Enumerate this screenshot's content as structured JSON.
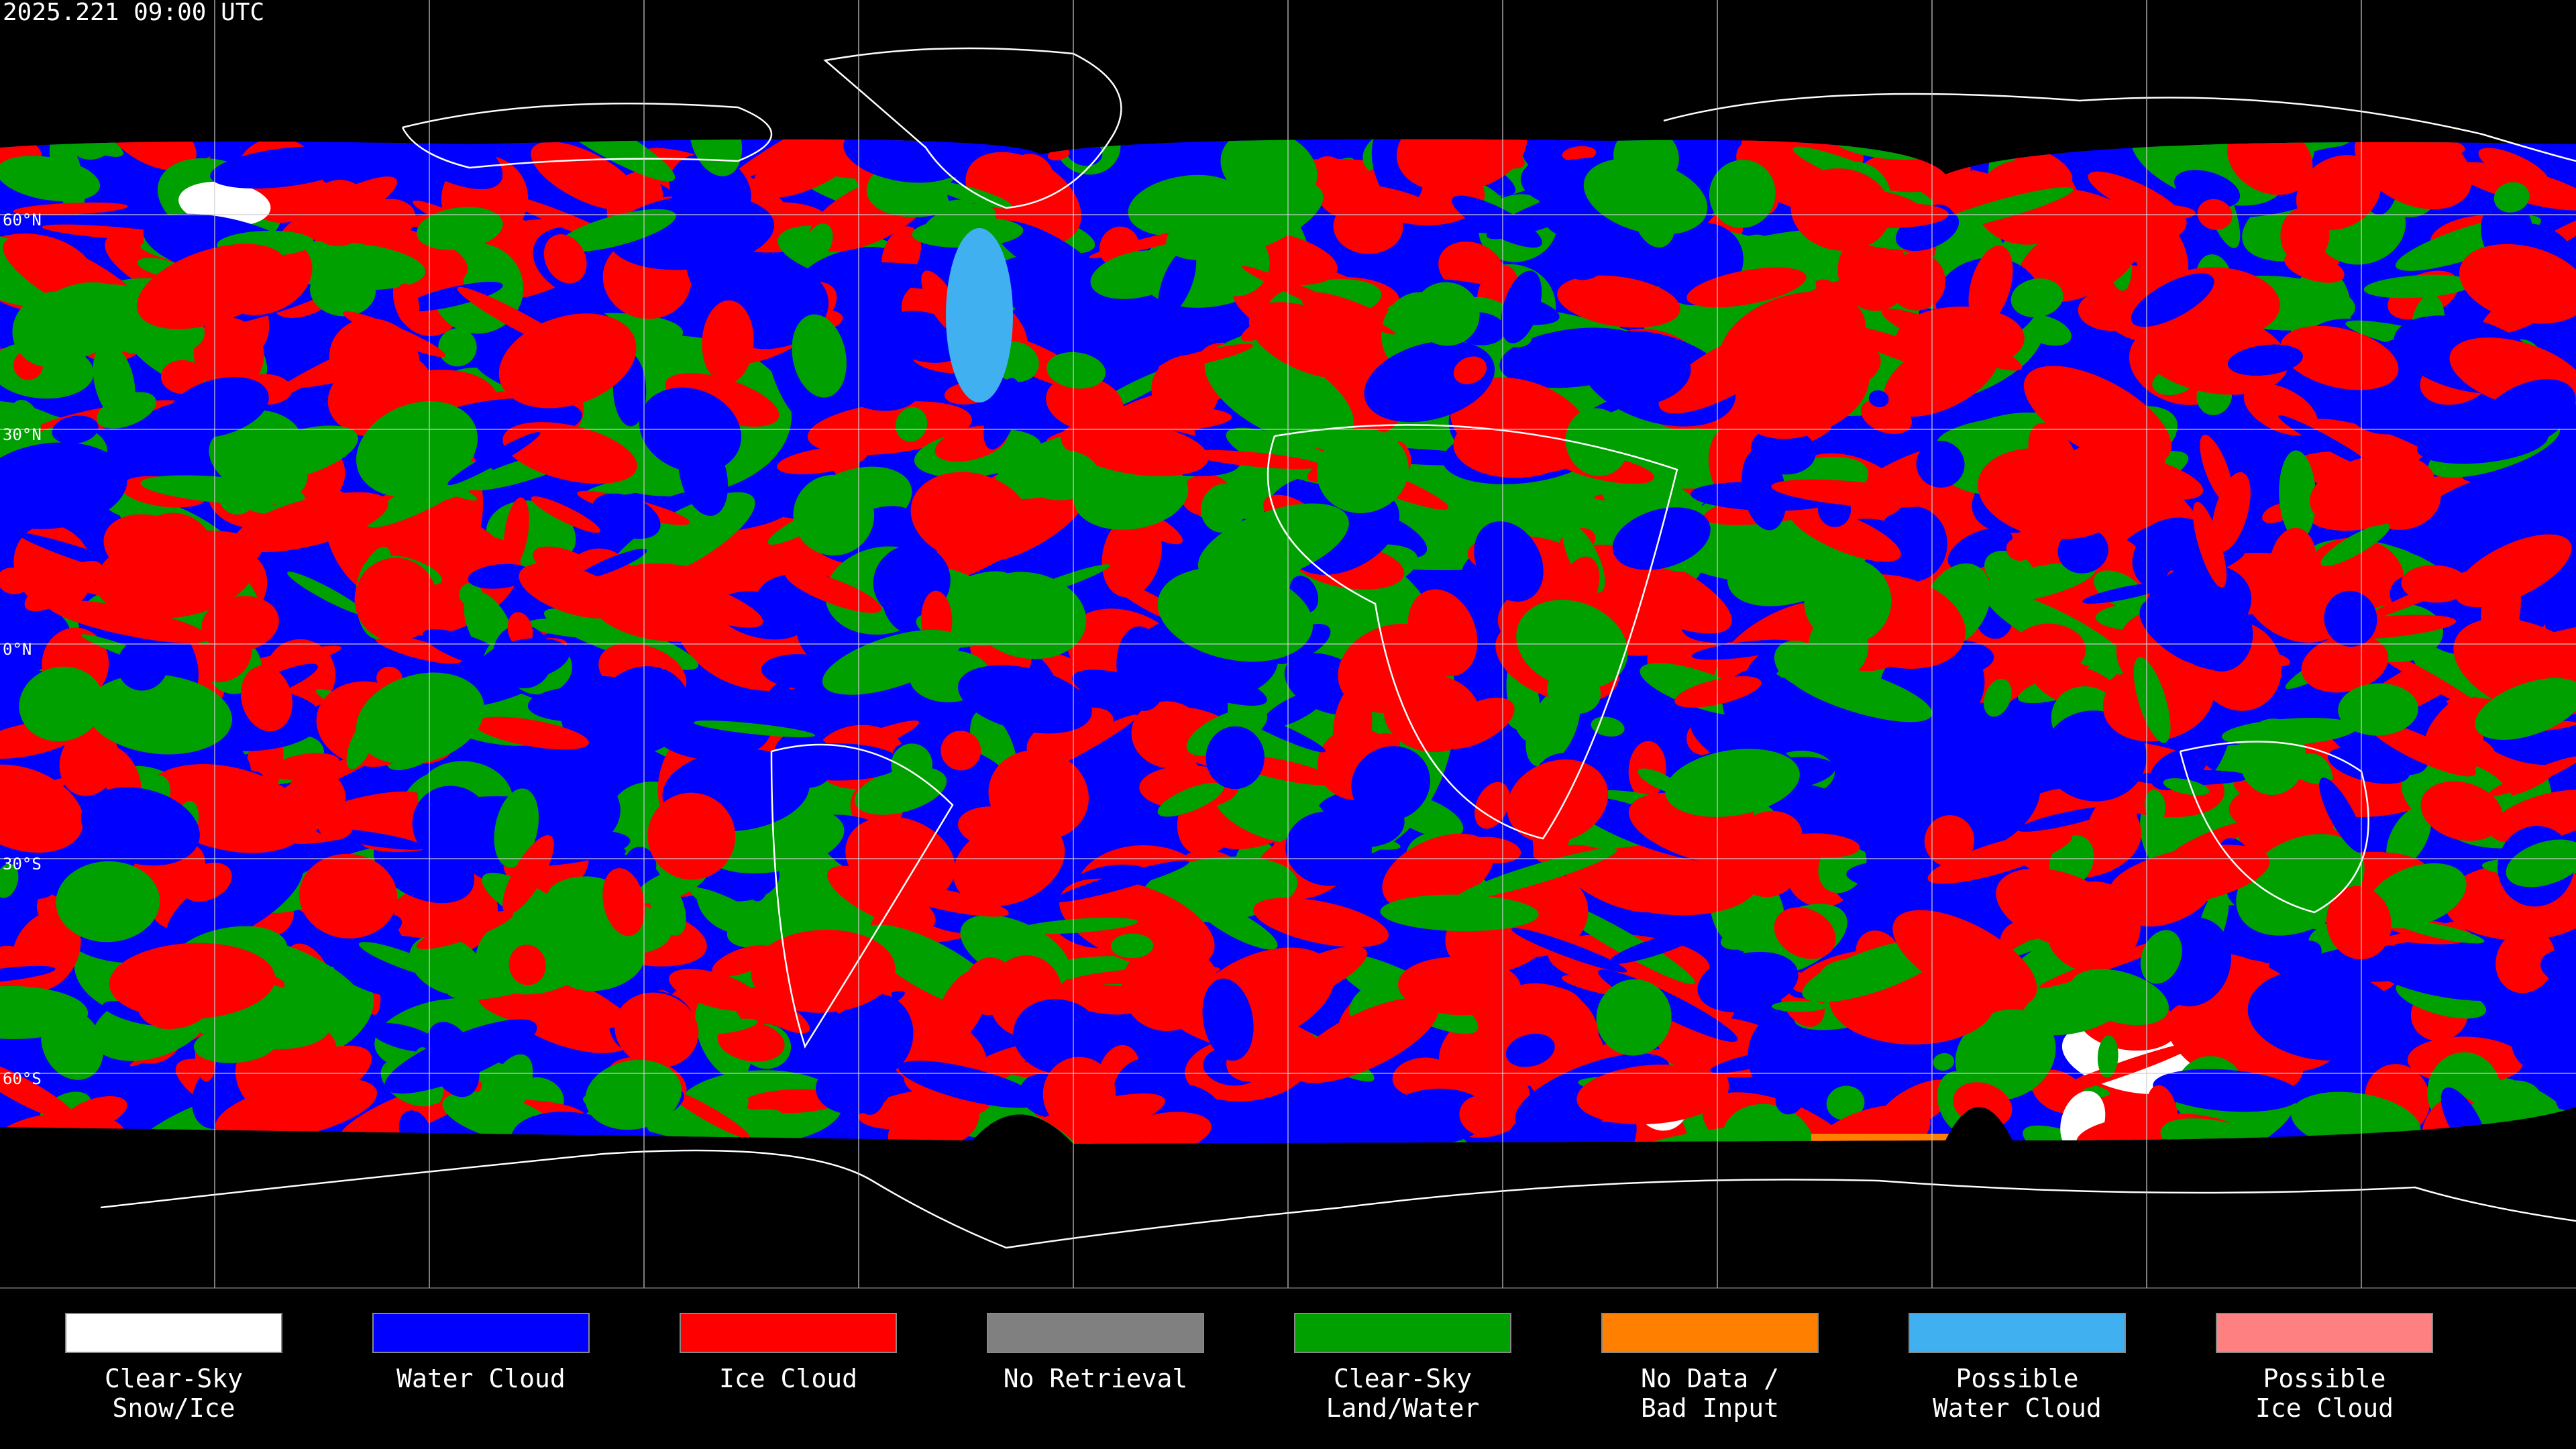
{
  "timestamp": "2025.221 09:00 UTC",
  "latitude_labels": [
    "60°N",
    "30°N",
    "0°N",
    "30°S",
    "60°S"
  ],
  "legend": [
    {
      "lines": [
        "Clear-Sky",
        "Snow/Ice"
      ],
      "color": "#ffffff"
    },
    {
      "lines": [
        "Water Cloud"
      ],
      "color": "#0000ff"
    },
    {
      "lines": [
        "Ice Cloud"
      ],
      "color": "#ff0000"
    },
    {
      "lines": [
        "No Retrieval"
      ],
      "color": "#808080"
    },
    {
      "lines": [
        "Clear-Sky",
        "Land/Water"
      ],
      "color": "#00a000"
    },
    {
      "lines": [
        "No Data /",
        "Bad Input"
      ],
      "color": "#ff8000"
    },
    {
      "lines": [
        "Possible",
        "Water Cloud"
      ],
      "color": "#40b0f0"
    },
    {
      "lines": [
        "Possible",
        "Ice Cloud"
      ],
      "color": "#ff8080"
    }
  ]
}
